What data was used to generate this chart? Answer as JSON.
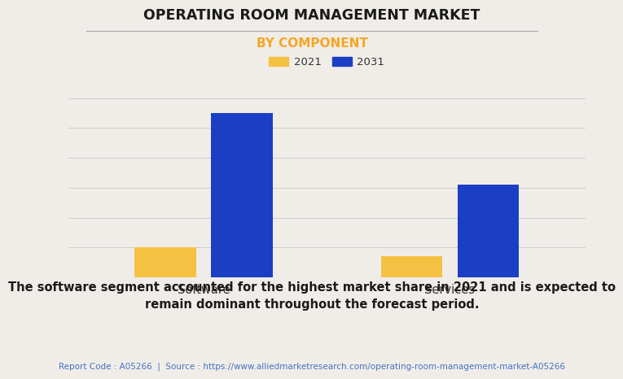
{
  "title": "OPERATING ROOM MANAGEMENT MARKET",
  "subtitle": "BY COMPONENT",
  "categories": [
    "Software",
    "Services"
  ],
  "series": [
    {
      "label": "2021",
      "values": [
        1.0,
        0.72
      ],
      "color": "#F5C142"
    },
    {
      "label": "2031",
      "values": [
        5.5,
        3.1
      ],
      "color": "#1B3FC4"
    }
  ],
  "ylim": [
    0,
    6.5
  ],
  "bar_width": 0.25,
  "background_color": "#F0EDE8",
  "grid_color": "#CCCCCC",
  "title_fontsize": 12.5,
  "subtitle_fontsize": 11,
  "subtitle_color": "#F5A623",
  "tick_label_fontsize": 10.5,
  "legend_fontsize": 9.5,
  "annotation_text": "The software segment accounted for the highest market share in 2021 and is expected to\nremain dominant throughout the forecast period.",
  "annotation_fontsize": 10.5,
  "footer_text": "Report Code : A05266  |  Source : https://www.alliedmarketresearch.com/operating-room-management-market-A05266",
  "footer_color": "#4472C4",
  "footer_fontsize": 7.5
}
